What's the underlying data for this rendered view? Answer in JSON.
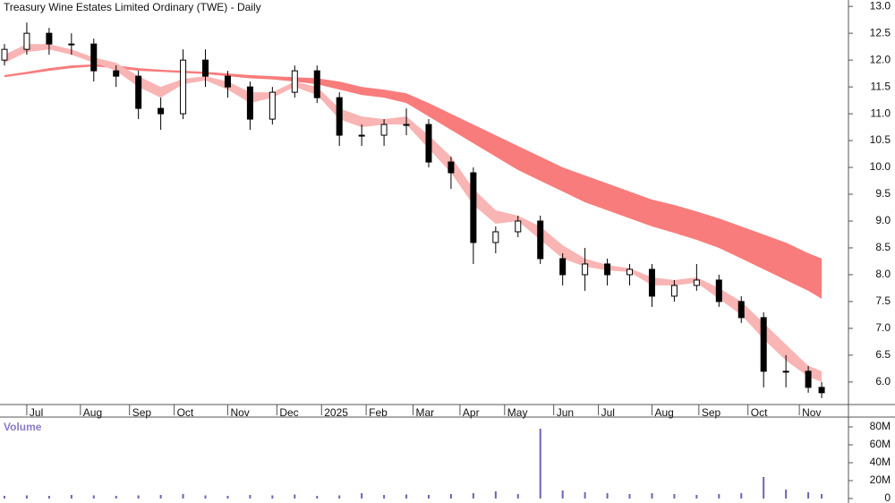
{
  "chart_data": [
    {
      "type": "candlestick",
      "title": "Treasury Wine Estates Limited Ordinary (TWE) - Daily",
      "x": [
        2,
        12,
        22,
        32,
        42,
        52,
        62,
        72,
        82,
        92,
        102,
        112,
        122,
        132,
        142,
        152,
        162,
        172,
        182,
        192,
        202,
        212,
        222,
        232,
        242,
        252,
        262,
        272,
        282,
        292,
        302,
        312,
        322,
        332,
        342,
        352,
        362,
        368
      ],
      "open": [
        12.0,
        12.2,
        12.5,
        12.3,
        12.3,
        11.8,
        11.7,
        11.1,
        11.0,
        12.0,
        11.7,
        11.5,
        10.9,
        11.4,
        11.8,
        11.3,
        10.6,
        10.6,
        10.8,
        10.8,
        10.1,
        9.9,
        8.6,
        8.8,
        9.0,
        8.3,
        8.0,
        8.2,
        8.0,
        8.1,
        7.6,
        7.8,
        7.9,
        7.5,
        7.2,
        6.2,
        6.2,
        5.9
      ],
      "high": [
        12.3,
        12.7,
        12.6,
        12.5,
        12.4,
        11.9,
        11.8,
        11.3,
        12.2,
        12.2,
        11.8,
        11.6,
        11.5,
        11.9,
        11.9,
        11.4,
        10.8,
        10.9,
        11.1,
        10.9,
        10.2,
        10.0,
        8.9,
        9.1,
        9.1,
        8.4,
        8.5,
        8.3,
        8.2,
        8.2,
        7.9,
        8.2,
        8.0,
        7.6,
        7.3,
        6.5,
        6.3,
        6.0
      ],
      "low": [
        11.9,
        12.1,
        12.1,
        12.1,
        11.6,
        11.5,
        10.9,
        10.7,
        10.9,
        11.5,
        11.3,
        10.7,
        10.8,
        11.3,
        11.2,
        10.4,
        10.4,
        10.4,
        10.6,
        10.0,
        9.6,
        8.2,
        8.4,
        8.7,
        8.2,
        7.8,
        7.7,
        7.8,
        7.8,
        7.4,
        7.5,
        7.7,
        7.4,
        7.1,
        5.9,
        5.9,
        5.8,
        5.7
      ],
      "close": [
        12.2,
        12.5,
        12.3,
        12.3,
        11.8,
        11.7,
        11.1,
        11.0,
        12.0,
        11.7,
        11.5,
        10.9,
        11.4,
        11.8,
        11.3,
        10.6,
        10.6,
        10.8,
        10.8,
        10.1,
        9.9,
        8.6,
        8.8,
        9.0,
        8.3,
        8.0,
        8.2,
        8.0,
        8.1,
        7.6,
        7.8,
        7.9,
        7.5,
        7.2,
        6.2,
        6.2,
        5.9,
        5.8
      ],
      "bands": [
        {
          "color": "#f87c7c",
          "upper": [
            11.72,
            11.78,
            11.85,
            11.9,
            11.92,
            11.9,
            11.85,
            11.82,
            11.8,
            11.78,
            11.75,
            11.72,
            11.7,
            11.68,
            11.66,
            11.6,
            11.5,
            11.45,
            11.38,
            11.2,
            11.0,
            10.8,
            10.6,
            10.4,
            10.2,
            10.0,
            9.85,
            9.7,
            9.55,
            9.4,
            9.3,
            9.18,
            9.05,
            8.9,
            8.75,
            8.6,
            8.4,
            8.3
          ],
          "lower": [
            11.68,
            11.74,
            11.8,
            11.85,
            11.88,
            11.85,
            11.8,
            11.78,
            11.76,
            11.74,
            11.7,
            11.66,
            11.64,
            11.6,
            11.55,
            11.45,
            11.35,
            11.3,
            11.2,
            10.95,
            10.7,
            10.45,
            10.2,
            9.95,
            9.75,
            9.55,
            9.35,
            9.2,
            9.05,
            8.9,
            8.78,
            8.65,
            8.5,
            8.3,
            8.1,
            7.9,
            7.7,
            7.55
          ]
        },
        {
          "color": "#f9b4b4",
          "upper": [
            12.1,
            12.3,
            12.3,
            12.2,
            12.05,
            11.95,
            11.7,
            11.5,
            11.65,
            11.7,
            11.6,
            11.4,
            11.4,
            11.6,
            11.5,
            11.1,
            10.95,
            10.9,
            10.95,
            10.6,
            10.2,
            9.6,
            9.2,
            9.1,
            8.9,
            8.55,
            8.3,
            8.18,
            8.12,
            7.95,
            7.9,
            7.95,
            7.75,
            7.5,
            7.1,
            6.7,
            6.3,
            6.2
          ],
          "lower": [
            11.95,
            12.15,
            12.2,
            12.1,
            11.95,
            11.8,
            11.5,
            11.3,
            11.55,
            11.62,
            11.45,
            11.2,
            11.3,
            11.5,
            11.35,
            10.9,
            10.75,
            10.8,
            10.8,
            10.35,
            9.9,
            9.3,
            8.95,
            9.0,
            8.65,
            8.3,
            8.15,
            8.08,
            8.05,
            7.8,
            7.8,
            7.85,
            7.55,
            7.25,
            6.8,
            6.4,
            6.1,
            6.0
          ]
        }
      ],
      "xlim": [
        0,
        380
      ],
      "xticks": [
        {
          "value": 12,
          "label": "Jul"
        },
        {
          "value": 36,
          "label": "Aug"
        },
        {
          "value": 58,
          "label": "Sep"
        },
        {
          "value": 78,
          "label": "Oct"
        },
        {
          "value": 102,
          "label": "Nov"
        },
        {
          "value": 124,
          "label": "Dec"
        },
        {
          "value": 144,
          "label": "2025"
        },
        {
          "value": 164,
          "label": "Feb"
        },
        {
          "value": 185,
          "label": "Mar"
        },
        {
          "value": 206,
          "label": "Apr"
        },
        {
          "value": 226,
          "label": "May"
        },
        {
          "value": 248,
          "label": "Jun"
        },
        {
          "value": 268,
          "label": "Jul"
        },
        {
          "value": 292,
          "label": "Aug"
        },
        {
          "value": 313,
          "label": "Sep"
        },
        {
          "value": 335,
          "label": "Oct"
        },
        {
          "value": 358,
          "label": "Nov"
        }
      ],
      "ylim": [
        5.58,
        13.12
      ],
      "yticks": [
        {
          "value": 6,
          "label": "6.0"
        },
        6.5,
        {
          "value": 7,
          "label": "7.0"
        },
        7.5,
        {
          "value": 8,
          "label": "8.0"
        },
        8.5,
        {
          "value": 9,
          "label": "9.0"
        },
        9.5,
        {
          "value": 10,
          "label": "10.0"
        },
        10.5,
        {
          "value": 11,
          "label": "11.0"
        },
        11.5,
        {
          "value": 12,
          "label": "12.0"
        },
        12.5,
        {
          "value": 13,
          "label": "13.0"
        }
      ]
    },
    {
      "type": "bar",
      "title": "Volume",
      "color": "#6f62b8",
      "x": [
        2,
        12,
        22,
        32,
        42,
        52,
        62,
        72,
        82,
        92,
        102,
        112,
        122,
        132,
        142,
        152,
        162,
        172,
        182,
        192,
        202,
        212,
        222,
        232,
        242,
        252,
        262,
        272,
        282,
        292,
        302,
        312,
        322,
        332,
        342,
        352,
        362,
        368
      ],
      "values": [
        3000000,
        3500000,
        3000000,
        4000000,
        3500000,
        3000000,
        3500000,
        4000000,
        5000000,
        3500000,
        3000000,
        4000000,
        3500000,
        4500000,
        3000000,
        3500000,
        6000000,
        4000000,
        4500000,
        4000000,
        5000000,
        6000000,
        8000000,
        5000000,
        78000000,
        9000000,
        7000000,
        6000000,
        5000000,
        6000000,
        5000000,
        4000000,
        5000000,
        6000000,
        24000000,
        10000000,
        7000000,
        5000000
      ],
      "xlim": [
        0,
        380
      ],
      "ylim": [
        0,
        88000000
      ],
      "yticks": [
        0,
        {
          "value": 20000000,
          "label": "20M"
        },
        {
          "value": 40000000,
          "label": "40M"
        },
        {
          "value": 60000000,
          "label": "60M"
        },
        {
          "value": 80000000,
          "label": "80M"
        }
      ]
    }
  ]
}
